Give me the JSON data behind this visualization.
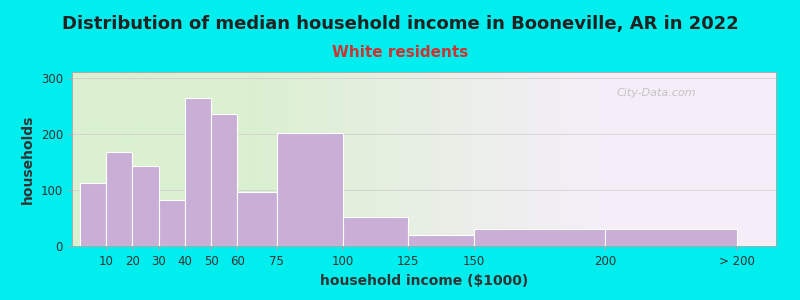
{
  "title": "Distribution of median household income in Booneville, AR in 2022",
  "subtitle": "White residents",
  "xlabel": "household income ($1000)",
  "ylabel": "households",
  "background_color": "#00EEEE",
  "plot_bg_gradient_left": "#daf0d0",
  "plot_bg_gradient_right": "#f5eef8",
  "bar_color": "#c9aed6",
  "bar_edge_color": "#ffffff",
  "categories": [
    "10",
    "20",
    "30",
    "40",
    "50",
    "60",
    "75",
    "100",
    "125",
    "150",
    "200",
    "> 200"
  ],
  "values": [
    113,
    168,
    143,
    82,
    263,
    235,
    97,
    201,
    52,
    20,
    30,
    30
  ],
  "left_edges": [
    0,
    10,
    20,
    30,
    40,
    50,
    60,
    75,
    100,
    125,
    150,
    200
  ],
  "widths": [
    10,
    10,
    10,
    10,
    10,
    10,
    15,
    25,
    25,
    25,
    50,
    50
  ],
  "tick_positions": [
    10,
    20,
    30,
    40,
    50,
    60,
    75,
    100,
    125,
    150,
    200,
    250
  ],
  "ylim": [
    0,
    310
  ],
  "xlim": [
    -3,
    265
  ],
  "yticks": [
    0,
    100,
    200,
    300
  ],
  "title_fontsize": 13,
  "subtitle_fontsize": 11,
  "subtitle_color": "#cc3333",
  "axis_label_fontsize": 10,
  "tick_fontsize": 8.5,
  "watermark_text": "City-Data.com",
  "watermark_color": "#bbbbbb"
}
